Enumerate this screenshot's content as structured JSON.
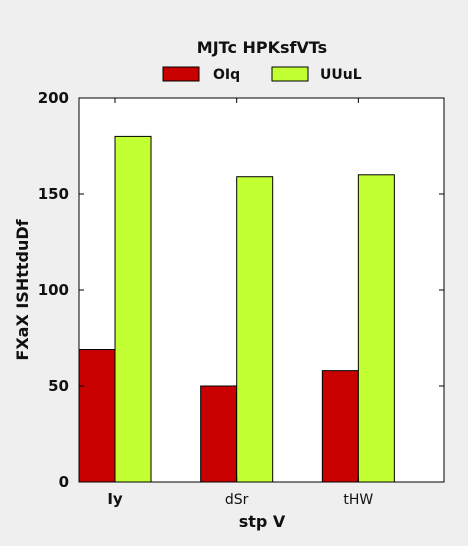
{
  "chart_data": {
    "type": "bar",
    "title": "",
    "legend_title": "MJTc HPKsfVTs",
    "legend_placement": "top-center",
    "categories": [
      "Iy",
      "dSr",
      "tHW"
    ],
    "series": [
      {
        "name": "OIq",
        "values": [
          69,
          50,
          58
        ],
        "color": "#c80000"
      },
      {
        "name": "UUuL",
        "values": [
          180,
          159,
          160
        ],
        "color": "#c2ff33"
      }
    ],
    "xlabel": "stp V",
    "ylabel": "FXaX ISHttduDf",
    "ylim": [
      0,
      200
    ],
    "yticks": [
      0,
      50,
      100,
      150,
      200
    ],
    "grid": false
  }
}
